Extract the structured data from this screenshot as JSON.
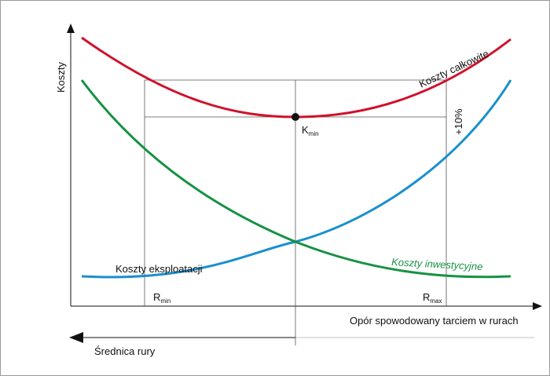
{
  "chart_data": {
    "type": "line",
    "title": "",
    "xlabel": "Opór spowodowany tarciem w rurach",
    "ylabel": "Koszty",
    "secondary_axis_label": "Średnica rury",
    "x_range": [
      0,
      1
    ],
    "y_range": [
      0,
      1
    ],
    "grid": false,
    "series": [
      {
        "name": "Koszty całkowite",
        "color": "#d0112b",
        "points": [
          [
            0.02,
            0.88
          ],
          [
            0.1,
            0.78
          ],
          [
            0.2,
            0.68
          ],
          [
            0.3,
            0.62
          ],
          [
            0.4,
            0.6
          ],
          [
            0.5,
            0.61
          ],
          [
            0.6,
            0.64
          ],
          [
            0.7,
            0.69
          ],
          [
            0.8,
            0.76
          ],
          [
            0.9,
            0.83
          ],
          [
            1.0,
            0.9
          ]
        ]
      },
      {
        "name": "Koszty eksploatacji",
        "color": "#1a8fce",
        "points": [
          [
            0.02,
            0.07
          ],
          [
            0.1,
            0.07
          ],
          [
            0.2,
            0.09
          ],
          [
            0.3,
            0.12
          ],
          [
            0.4,
            0.16
          ],
          [
            0.5,
            0.21
          ],
          [
            0.6,
            0.27
          ],
          [
            0.7,
            0.35
          ],
          [
            0.8,
            0.46
          ],
          [
            0.9,
            0.6
          ],
          [
            1.0,
            0.77
          ]
        ]
      },
      {
        "name": "Koszty inwestycyjne",
        "color": "#169244",
        "points": [
          [
            0.02,
            0.76
          ],
          [
            0.1,
            0.64
          ],
          [
            0.2,
            0.52
          ],
          [
            0.3,
            0.38
          ],
          [
            0.4,
            0.28
          ],
          [
            0.5,
            0.2
          ],
          [
            0.6,
            0.15
          ],
          [
            0.7,
            0.11
          ],
          [
            0.8,
            0.09
          ],
          [
            0.9,
            0.07
          ],
          [
            1.0,
            0.08
          ]
        ]
      }
    ],
    "markers": {
      "k_min": {
        "label": "K",
        "sub": "min",
        "x": 0.5,
        "y": 0.61
      },
      "r_min": {
        "label": "R",
        "sub": "min",
        "x": 0.17
      },
      "r_max": {
        "label": "R",
        "sub": "max",
        "x": 0.82
      },
      "plus_ten": {
        "label": "+10%",
        "y": 0.77
      }
    }
  }
}
